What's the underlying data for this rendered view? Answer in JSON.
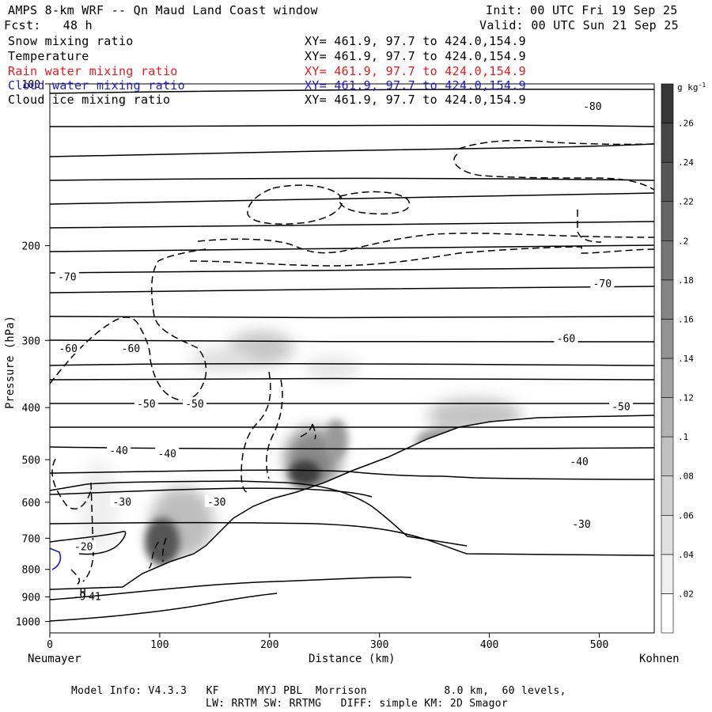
{
  "header": {
    "title": "AMPS 8-km WRF -- Qn Maud Land Coast window",
    "init": "Init: 00 UTC Fri 19 Sep 25",
    "fcst": "Fcst:   48 h",
    "valid": "Valid: 00 UTC Sun 21 Sep 25"
  },
  "legend": [
    {
      "label": "Snow mixing ratio",
      "xy": "XY= 461.9, 97.7 to 424.0,154.9",
      "color": "#000000"
    },
    {
      "label": "Temperature",
      "xy": "XY= 461.9, 97.7 to 424.0,154.9",
      "color": "#000000"
    },
    {
      "label": "Rain water mixing ratio",
      "xy": "XY= 461.9, 97.7 to 424.0,154.9",
      "color": "#e8191c"
    },
    {
      "label": "Cloud water mixing ratio",
      "xy": "XY= 461.9, 97.7 to 424.0,154.9",
      "color": "#1c1ccc"
    },
    {
      "label": "Cloud ice mixing ratio",
      "xy": "XY= 461.9, 97.7 to 424.0,154.9",
      "color": "#000000"
    }
  ],
  "footer": {
    "line1": "Model Info: V4.3.3   KF      MYJ PBL  Morrison            8.0 km,  60 levels,",
    "line2": "LW: RRTM SW: RRTMG   DIFF: simple KM: 2D Smagor"
  },
  "chart_data": {
    "type": "cross-section",
    "xlabel": "Distance (km)",
    "ylabel": "Pressure (hPa)",
    "xlim": [
      0,
      550
    ],
    "ylim": [
      1050,
      100
    ],
    "x_ticks": [
      0,
      100,
      200,
      300,
      400,
      500
    ],
    "y_ticks": [
      100,
      200,
      300,
      400,
      500,
      600,
      700,
      800,
      900,
      1000
    ],
    "left_endpoint": "Neumayer",
    "right_endpoint": "Kohnen",
    "colorbar": {
      "units": "g kg-1",
      "levels": [
        0,
        0.02,
        0.04,
        0.06,
        0.08,
        0.1,
        0.12,
        0.14,
        0.16,
        0.18,
        0.2,
        0.22,
        0.24,
        0.26,
        0.28
      ],
      "tick_labels": [
        ".02",
        ".04",
        ".06",
        ".08",
        ".1",
        ".12",
        ".14",
        ".16",
        ".18",
        ".2",
        ".22",
        ".24",
        ".26"
      ]
    },
    "isotherm_labels": [
      {
        "value": "-80",
        "x": 493,
        "p": 110
      },
      {
        "value": "-70",
        "x": 15,
        "p": 228
      },
      {
        "value": "-70",
        "x": 502,
        "p": 235
      },
      {
        "value": "-60",
        "x": 16,
        "p": 310
      },
      {
        "value": "-60",
        "x": 73,
        "p": 310
      },
      {
        "value": "-60",
        "x": 469,
        "p": 297
      },
      {
        "value": "-50",
        "x": 87,
        "p": 393
      },
      {
        "value": "-50",
        "x": 131,
        "p": 393
      },
      {
        "value": "-50",
        "x": 519,
        "p": 398
      },
      {
        "value": "-40",
        "x": 62,
        "p": 480
      },
      {
        "value": "-40",
        "x": 106,
        "p": 487
      },
      {
        "value": "-40",
        "x": 481,
        "p": 503
      },
      {
        "value": "-30",
        "x": 65,
        "p": 598
      },
      {
        "value": "-30",
        "x": 151,
        "p": 598
      },
      {
        "value": "-30",
        "x": 483,
        "p": 658
      },
      {
        "value": "-20",
        "x": 30,
        "p": 725
      }
    ],
    "annotations": [
      {
        "text": "H",
        "x": 30,
        "p": 880
      },
      {
        "text": "-9",
        "x": 27,
        "p": 897
      },
      {
        "text": "41",
        "x": 41,
        "p": 897
      }
    ]
  }
}
